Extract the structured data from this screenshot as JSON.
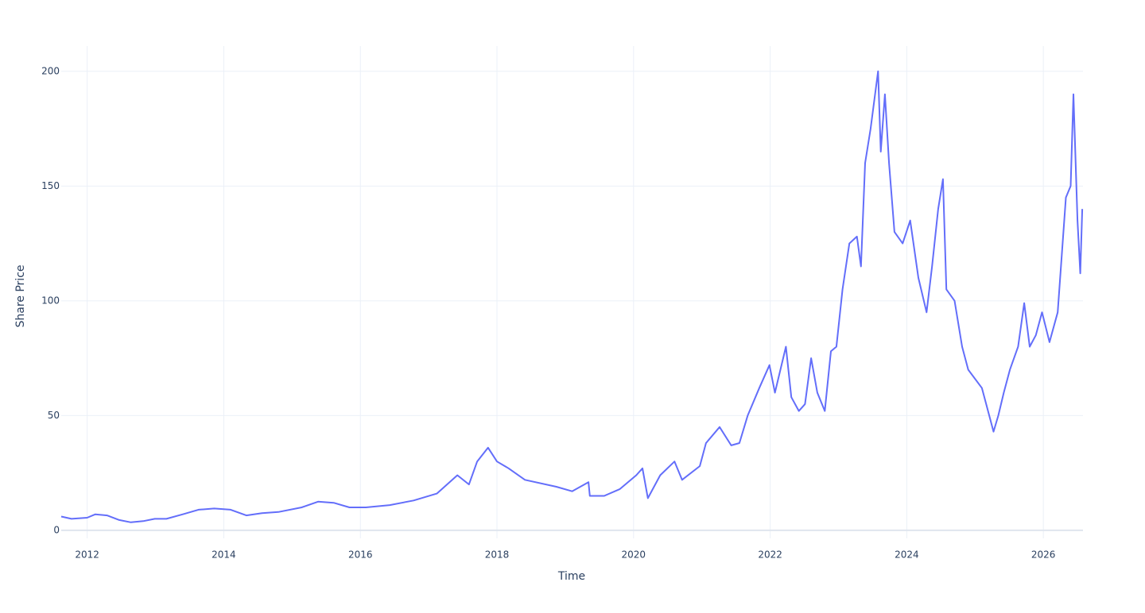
{
  "chart_data": {
    "type": "line",
    "xlabel": "Time",
    "ylabel": "Share Price",
    "x": [
      2011.62,
      2011.77,
      2012.0,
      2012.12,
      2012.29,
      2012.47,
      2012.64,
      2012.82,
      2012.99,
      2013.16,
      2013.4,
      2013.63,
      2013.86,
      2014.1,
      2014.33,
      2014.56,
      2014.8,
      2015.14,
      2015.38,
      2015.61,
      2015.84,
      2016.08,
      2016.43,
      2016.78,
      2017.12,
      2017.42,
      2017.59,
      2017.71,
      2017.87,
      2018.0,
      2018.17,
      2018.41,
      2018.87,
      2019.1,
      2019.34,
      2019.36,
      2019.57,
      2019.8,
      2020.04,
      2020.13,
      2020.21,
      2020.39,
      2020.6,
      2020.71,
      2020.97,
      2021.06,
      2021.26,
      2021.43,
      2021.55,
      2021.67,
      2021.84,
      2021.99,
      2022.07,
      2022.23,
      2022.31,
      2022.42,
      2022.51,
      2022.6,
      2022.69,
      2022.8,
      2022.89,
      2022.97,
      2023.06,
      2023.16,
      2023.27,
      2023.33,
      2023.39,
      2023.47,
      2023.58,
      2023.62,
      2023.68,
      2023.74,
      2023.82,
      2023.94,
      2024.05,
      2024.17,
      2024.29,
      2024.37,
      2024.46,
      2024.53,
      2024.58,
      2024.7,
      2024.81,
      2024.9,
      2025.1,
      2025.27,
      2025.34,
      2025.42,
      2025.51,
      2025.63,
      2025.72,
      2025.8,
      2025.89,
      2025.98,
      2026.09,
      2026.21,
      2026.33,
      2026.4,
      2026.44,
      2026.5,
      2026.54,
      2026.57
    ],
    "series": [
      {
        "color": "#636efa",
        "values": [
          6,
          5,
          5.5,
          7,
          6.5,
          4.5,
          3.5,
          4,
          5,
          5,
          7,
          9,
          9.5,
          9,
          6.5,
          7.5,
          8,
          10,
          12.5,
          12,
          10,
          10,
          11,
          13,
          16,
          24,
          20,
          30,
          36,
          30,
          27,
          22,
          19,
          17,
          21,
          15,
          15,
          18,
          24,
          27,
          14,
          24,
          30,
          22,
          28,
          38,
          45,
          37,
          38,
          50,
          62,
          72,
          60,
          80,
          58,
          52,
          55,
          75,
          60,
          52,
          78,
          80,
          105,
          125,
          128,
          115,
          160,
          175,
          200,
          165,
          190,
          160,
          130,
          125,
          135,
          110,
          95,
          115,
          140,
          153,
          105,
          100,
          80,
          70,
          62,
          43,
          50,
          60,
          70,
          80,
          99,
          80,
          85,
          95,
          82,
          95,
          145,
          150,
          190,
          135,
          112,
          140
        ]
      }
    ],
    "xlim": [
      2011.62,
      2026.58
    ],
    "xticks": [
      2012,
      2014,
      2016,
      2018,
      2020,
      2022,
      2024,
      2026
    ],
    "ylim": [
      -3.5,
      211
    ],
    "yticks": [
      0,
      50,
      100,
      150,
      200
    ],
    "grid": true
  }
}
